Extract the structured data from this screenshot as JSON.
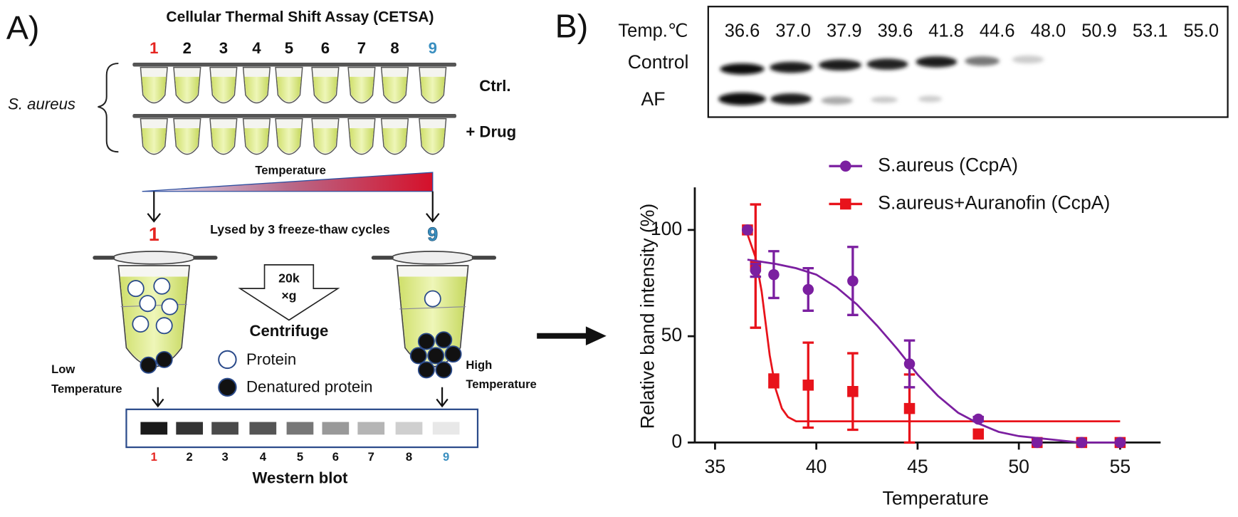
{
  "panel_a": {
    "label": "A)",
    "title": "Cellular Thermal Shift Assay (CETSA)",
    "tube_numbers": [
      "1",
      "2",
      "3",
      "4",
      "5",
      "6",
      "7",
      "8",
      "9"
    ],
    "organism": "S. aureus",
    "rows": [
      "Ctrl.",
      "+ Drug"
    ],
    "gradient": "Temperature",
    "first": "1",
    "last": "9",
    "lysis": "Lysed by 3 freeze-thaw cycles",
    "force": [
      "20k",
      "×g"
    ],
    "centrifuge": "Centrifuge",
    "legend": [
      "Protein",
      "Denatured protein"
    ],
    "low": [
      "Low",
      "Temperature"
    ],
    "high": [
      "High",
      "Temperature"
    ],
    "blot_numbers": [
      "1",
      "2",
      "3",
      "4",
      "5",
      "6",
      "7",
      "8",
      "9"
    ],
    "blot_title": "Western blot"
  },
  "panel_b": {
    "label": "B)",
    "blot_header": "Temp.℃",
    "temperatures": [
      "36.6",
      "37.0",
      "37.9",
      "39.6",
      "41.8",
      "44.6",
      "48.0",
      "50.9",
      "53.1",
      "55.0"
    ],
    "blot_rows": [
      "Control",
      "AF"
    ]
  },
  "chart_data": {
    "type": "scatter",
    "x": [
      36.6,
      37.0,
      37.9,
      39.6,
      41.8,
      44.6,
      48.0,
      50.9,
      53.1,
      55.0
    ],
    "series": [
      {
        "name": "S.aureus (CcpA)",
        "color": "#7b1fa0",
        "marker": "circle",
        "values": [
          100,
          81,
          79,
          72,
          76,
          37,
          11,
          0,
          0,
          0
        ],
        "errors": [
          0,
          3,
          11,
          10,
          16,
          11,
          1,
          0,
          0,
          0
        ],
        "fit_x": [
          36.6,
          38,
          39,
          40,
          41,
          42,
          43,
          44,
          45,
          46,
          47,
          48,
          49,
          50,
          51,
          52,
          53,
          55
        ],
        "fit_values": [
          86,
          84,
          82,
          79,
          73,
          65,
          55,
          44,
          32,
          22,
          14,
          9,
          5,
          3,
          2,
          1,
          0,
          0
        ]
      },
      {
        "name": "S.aureus+Auranofin (CcpA)",
        "color": "#e8131b",
        "marker": "square",
        "values": [
          100,
          83,
          29,
          27,
          24,
          16,
          4,
          0,
          0,
          0
        ],
        "errors": [
          0,
          29,
          3,
          20,
          18,
          16,
          2,
          0,
          0,
          0
        ],
        "fit_x": [
          36.6,
          37.0,
          37.3,
          37.5,
          37.7,
          38.0,
          38.3,
          38.6,
          39,
          40,
          45,
          50,
          55
        ],
        "fit_values": [
          98,
          87,
          71,
          56,
          41,
          25,
          16,
          12,
          10,
          10,
          10,
          10,
          10
        ]
      }
    ],
    "xlabel": "Temperature",
    "ylabel": "Relative band intensity (%)",
    "xlim": [
      34,
      57
    ],
    "ylim": [
      0,
      120
    ],
    "xticks": [
      35,
      40,
      45,
      50,
      55
    ],
    "yticks": [
      0,
      50,
      100
    ],
    "legend": "top"
  }
}
